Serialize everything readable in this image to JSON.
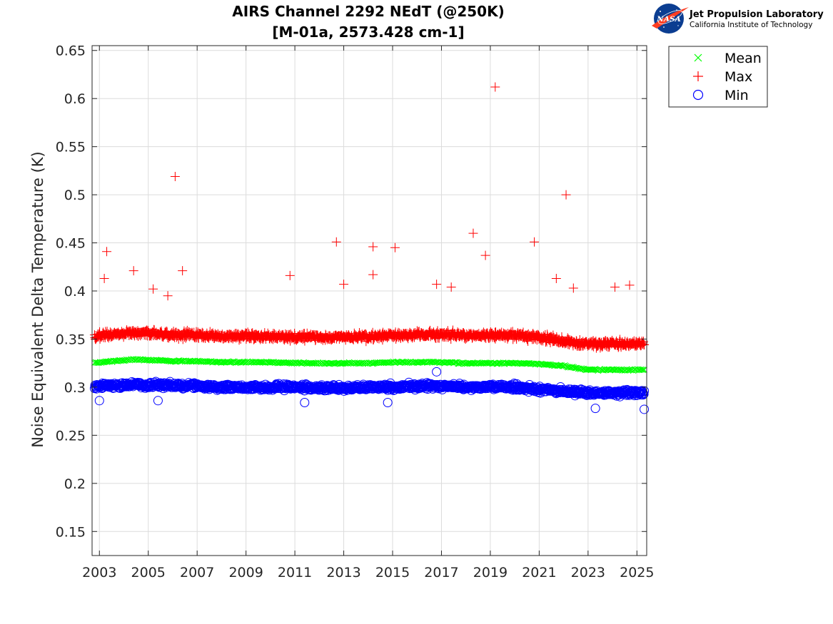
{
  "logo": {
    "badge_text": "NASA",
    "title": "Jet Propulsion Laboratory",
    "subtitle": "California Institute of Technology"
  },
  "chart_data": {
    "type": "scatter",
    "title": [
      "AIRS Channel 2292 NEdT (@250K)",
      "[M-01a, 2573.428 cm-1]"
    ],
    "xlabel": "",
    "ylabel": "Noise Equivalent Delta Temperature (K)",
    "xlim": [
      2002.7,
      2025.4
    ],
    "ylim": [
      0.125,
      0.655
    ],
    "x_ticks": [
      2003,
      2005,
      2007,
      2009,
      2011,
      2013,
      2015,
      2017,
      2019,
      2021,
      2023,
      2025
    ],
    "x_tick_labels": [
      "2003",
      "2005",
      "2007",
      "2009",
      "2011",
      "2013",
      "2015",
      "2017",
      "2019",
      "2021",
      "2023",
      "2025"
    ],
    "y_ticks": [
      0.15,
      0.2,
      0.25,
      0.3,
      0.35,
      0.4,
      0.45,
      0.5,
      0.55,
      0.6,
      0.65
    ],
    "y_tick_labels": [
      "0.15",
      "0.2",
      "0.25",
      "0.3",
      "0.35",
      "0.4",
      "0.45",
      "0.5",
      "0.55",
      "0.6",
      "0.65"
    ],
    "grid": true,
    "legend_position": "outside-top-right",
    "series": [
      {
        "name": "Mean",
        "marker": "x",
        "color": "#00ff00",
        "x": [
          2002.8,
          2003.5,
          2004.0,
          2004.5,
          2005.0,
          2005.5,
          2006.0,
          2007.0,
          2008.0,
          2009.0,
          2010.0,
          2011.0,
          2012.0,
          2013.0,
          2014.0,
          2015.0,
          2016.0,
          2017.0,
          2018.0,
          2019.0,
          2020.0,
          2021.0,
          2021.5,
          2022.0,
          2022.5,
          2023.0,
          2023.5,
          2024.0,
          2024.5,
          2025.3
        ],
        "y": [
          0.325,
          0.327,
          0.328,
          0.329,
          0.328,
          0.328,
          0.327,
          0.327,
          0.326,
          0.326,
          0.326,
          0.325,
          0.325,
          0.325,
          0.325,
          0.326,
          0.326,
          0.326,
          0.325,
          0.325,
          0.325,
          0.324,
          0.323,
          0.322,
          0.32,
          0.318,
          0.318,
          0.318,
          0.318,
          0.318
        ]
      },
      {
        "name": "Max",
        "marker": "+",
        "color": "#ff0000",
        "x": [
          2002.8,
          2003.5,
          2004.0,
          2004.5,
          2005.0,
          2005.5,
          2006.0,
          2007.0,
          2008.0,
          2009.0,
          2010.0,
          2011.0,
          2012.0,
          2013.0,
          2014.0,
          2015.0,
          2016.0,
          2017.0,
          2018.0,
          2019.0,
          2020.0,
          2021.0,
          2021.5,
          2022.0,
          2022.5,
          2023.0,
          2023.5,
          2024.0,
          2024.5,
          2025.3,
          2003.2,
          2003.3,
          2004.4,
          2005.2,
          2006.1,
          2006.4,
          2005.8,
          2010.8,
          2012.7,
          2013.0,
          2014.2,
          2014.2,
          2015.1,
          2016.8,
          2017.4,
          2018.3,
          2018.8,
          2019.2,
          2020.8,
          2021.7,
          2022.1,
          2022.4,
          2024.1,
          2024.7
        ],
        "y": [
          0.352,
          0.355,
          0.356,
          0.357,
          0.356,
          0.355,
          0.355,
          0.354,
          0.353,
          0.353,
          0.353,
          0.352,
          0.352,
          0.352,
          0.352,
          0.354,
          0.355,
          0.355,
          0.354,
          0.354,
          0.354,
          0.352,
          0.35,
          0.348,
          0.346,
          0.345,
          0.345,
          0.345,
          0.345,
          0.345,
          0.413,
          0.441,
          0.421,
          0.402,
          0.519,
          0.421,
          0.395,
          0.416,
          0.451,
          0.407,
          0.446,
          0.417,
          0.445,
          0.407,
          0.404,
          0.46,
          0.437,
          0.612,
          0.451,
          0.413,
          0.5,
          0.403,
          0.404,
          0.406
        ]
      },
      {
        "name": "Min",
        "marker": "o",
        "color": "#0000ff",
        "x": [
          2002.8,
          2003.5,
          2004.0,
          2004.5,
          2005.0,
          2005.5,
          2006.0,
          2007.0,
          2008.0,
          2009.0,
          2010.0,
          2011.0,
          2012.0,
          2013.0,
          2014.0,
          2015.0,
          2016.0,
          2017.0,
          2018.0,
          2019.0,
          2020.0,
          2021.0,
          2021.5,
          2022.0,
          2022.5,
          2023.0,
          2023.5,
          2024.0,
          2024.5,
          2025.3,
          2003.0,
          2005.4,
          2011.4,
          2014.8,
          2016.8,
          2023.3,
          2025.3
        ],
        "y": [
          0.301,
          0.302,
          0.302,
          0.303,
          0.302,
          0.302,
          0.302,
          0.301,
          0.3,
          0.3,
          0.3,
          0.3,
          0.299,
          0.299,
          0.3,
          0.3,
          0.301,
          0.301,
          0.3,
          0.3,
          0.3,
          0.298,
          0.297,
          0.296,
          0.295,
          0.294,
          0.294,
          0.294,
          0.294,
          0.294,
          0.286,
          0.286,
          0.284,
          0.284,
          0.316,
          0.278,
          0.277
        ]
      }
    ]
  }
}
